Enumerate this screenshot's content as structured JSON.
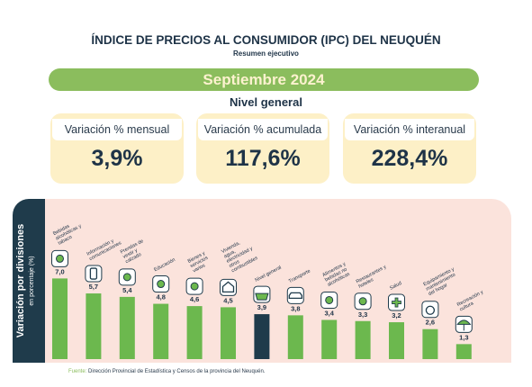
{
  "header": {
    "title": "ÍNDICE DE PRECIOS AL CONSUMIDOR (IPC) DEL NEUQUÉN",
    "subtitle": "Resumen ejecutivo",
    "period": "Septiembre 2024",
    "section": "Nivel general"
  },
  "cards": [
    {
      "label": "Variación % mensual",
      "value": "3,9%"
    },
    {
      "label": "Variación % acumulada",
      "value": "117,6%"
    },
    {
      "label": "Variación % interanual",
      "value": "228,4%"
    }
  ],
  "side": {
    "title": "Variación por divisiones",
    "subtitle": "en porcentaje (%)"
  },
  "colors": {
    "green": "#6cb84e",
    "highlight": "#1f3b4b",
    "cream": "#fdf0c7",
    "panel": "#fbe3dc"
  },
  "chart_data": {
    "type": "bar",
    "categories": [
      "Bebidas alcohólicas y tabaco",
      "Información y comunicaciones",
      "Prendas de vestir y calzado",
      "Educación",
      "Bienes y servicios varios",
      "Vivienda, agua, electricidad y otros combustibles",
      "Nivel general",
      "Transporte",
      "Alimentos y bebidas no alcohólicas",
      "Restaurantes y hoteles",
      "Salud",
      "Equipamiento y mantenimiento del hogar",
      "Recreación y cultura"
    ],
    "values": [
      7.0,
      5.7,
      5.4,
      4.8,
      4.6,
      4.5,
      3.9,
      3.8,
      3.4,
      3.3,
      3.2,
      2.6,
      1.3
    ],
    "value_labels": [
      "7,0",
      "5,7",
      "5,4",
      "4,8",
      "4,6",
      "4,5",
      "3,9",
      "3,8",
      "3,4",
      "3,3",
      "3,2",
      "2,6",
      "1,3"
    ],
    "highlight_category": "Nivel general",
    "icons": [
      "bottle-glass-icon",
      "phone-icon",
      "shirt-shoe-icon",
      "book-icon",
      "tools-icon",
      "house-icon",
      "basket-icon",
      "car-icon",
      "food-icon",
      "bags-icon",
      "health-cross-icon",
      "washer-icon",
      "beach-umbrella-icon"
    ],
    "ylim": [
      0,
      7.5
    ]
  },
  "source": {
    "label": "Fuente:",
    "text": "Dirección Provincial de Estadística y Censos de la provincia del Neuquén."
  }
}
